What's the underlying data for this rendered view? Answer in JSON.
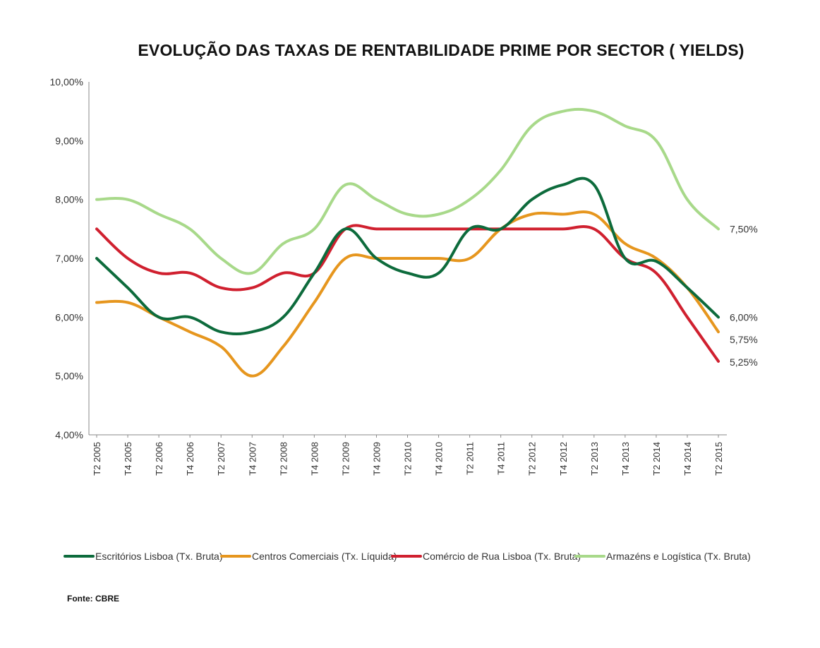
{
  "chart_data": {
    "type": "line",
    "title": "EVOLUÇÃO DAS TAXAS DE RENTABILIDADE PRIME POR SECTOR ( YIELDS)",
    "xlabel": "",
    "ylabel": "",
    "ylim": [
      4.0,
      10.0
    ],
    "y_ticks": [
      "4,00%",
      "5,00%",
      "6,00%",
      "7,00%",
      "8,00%",
      "9,00%",
      "10,00%"
    ],
    "y_tick_values": [
      4,
      5,
      6,
      7,
      8,
      9,
      10
    ],
    "categories": [
      "T2 2005",
      "T4 2005",
      "T2 2006",
      "T4 2006",
      "T2 2007",
      "T4 2007",
      "T2 2008",
      "T4 2008",
      "T2 2009",
      "T4 2009",
      "T2 2010",
      "T4 2010",
      "T2 2011",
      "T4 2011",
      "T2 2012",
      "T4 2012",
      "T2 2013",
      "T4 2013",
      "T2 2014",
      "T4 2014",
      "T2 2015"
    ],
    "series": [
      {
        "name": "Escritórios Lisboa (Tx. Bruta)",
        "color": "#0d6b3c",
        "values": [
          7.0,
          6.5,
          6.0,
          6.0,
          5.75,
          5.75,
          6.0,
          6.75,
          7.5,
          7.0,
          6.75,
          6.75,
          7.5,
          7.5,
          8.0,
          8.25,
          8.25,
          7.0,
          6.95,
          6.5,
          6.0
        ],
        "end_label": "6,00%"
      },
      {
        "name": "Centros Comerciais (Tx. Líquida)",
        "color": "#e6961e",
        "values": [
          6.25,
          6.25,
          6.0,
          5.75,
          5.5,
          5.0,
          5.5,
          6.25,
          7.0,
          7.0,
          7.0,
          7.0,
          7.0,
          7.5,
          7.75,
          7.75,
          7.75,
          7.25,
          7.0,
          6.5,
          5.75
        ],
        "end_label": "5,75%"
      },
      {
        "name": "Comércio de Rua Lisboa (Tx. Bruta)",
        "color": "#d0202f",
        "values": [
          7.5,
          7.0,
          6.75,
          6.75,
          6.5,
          6.5,
          6.75,
          6.75,
          7.5,
          7.5,
          7.5,
          7.5,
          7.5,
          7.5,
          7.5,
          7.5,
          7.5,
          7.0,
          6.75,
          6.0,
          5.25
        ],
        "end_label": "5,25%"
      },
      {
        "name": "Armazéns e Logística (Tx. Bruta)",
        "color": "#a8d98a",
        "values": [
          8.0,
          8.0,
          7.75,
          7.5,
          7.0,
          6.75,
          7.25,
          7.5,
          8.25,
          8.0,
          7.75,
          7.75,
          8.0,
          8.5,
          9.25,
          9.5,
          9.5,
          9.25,
          9.0,
          8.0,
          7.5
        ],
        "end_label": "7,50%"
      }
    ],
    "legend_position": "bottom",
    "source": "Fonte: CBRE"
  }
}
